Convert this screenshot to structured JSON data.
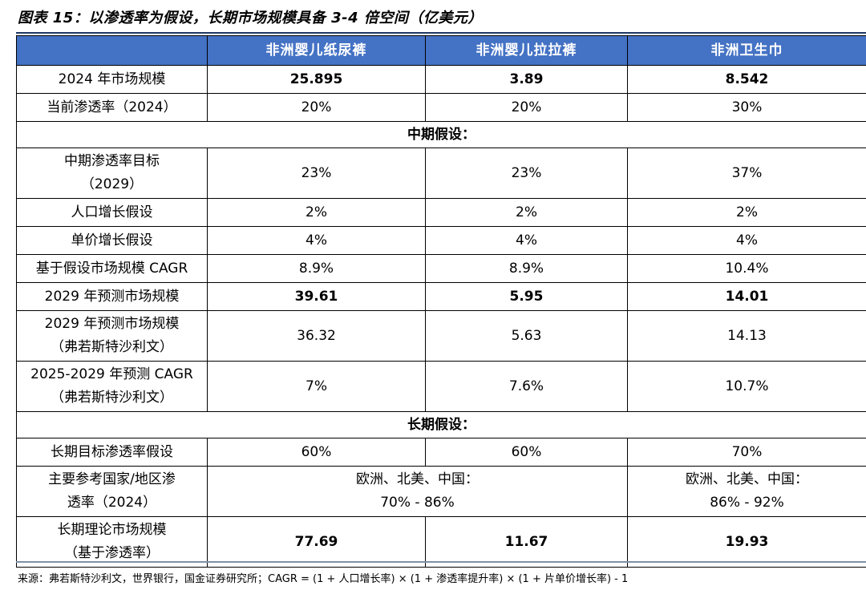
{
  "title": "图表 15：以渗透率为假设，长期市场规模具备 3-4 倍空间（亿美元）",
  "header": {
    "col0": "",
    "col1": "非洲婴儿纸尿裤",
    "col2": "非洲婴儿拉拉裤",
    "col3": "非洲卫生巾"
  },
  "rows": {
    "market_size": {
      "label": "2024 年市场规模",
      "v1": "25.895",
      "v2": "3.89",
      "v3": "8.542"
    },
    "current_pen": {
      "label": "当前渗透率（2024）",
      "v1": "20%",
      "v2": "20%",
      "v3": "30%"
    },
    "mid_section": "中期假设：",
    "mid_target": {
      "label_l1": "中期渗透率目标",
      "label_l2": "（2029）",
      "v1": "23%",
      "v2": "23%",
      "v3": "37%"
    },
    "pop_growth": {
      "label": "人口增长假设",
      "v1": "2%",
      "v2": "2%",
      "v3": "2%"
    },
    "price_growth": {
      "label": "单价增长假设",
      "v1": "4%",
      "v2": "4%",
      "v3": "4%"
    },
    "cagr_assumed": {
      "label": "基于假设市场规模 CAGR",
      "v1": "8.9%",
      "v2": "8.9%",
      "v3": "10.4%"
    },
    "forecast_2029": {
      "label": "2029 年预测市场规模",
      "v1": "39.61",
      "v2": "5.95",
      "v3": "14.01"
    },
    "forecast_2029_fs": {
      "label_l1": "2029 年预测市场规模",
      "label_l2": "（弗若斯特沙利文）",
      "v1": "36.32",
      "v2": "5.63",
      "v3": "14.13"
    },
    "cagr_fs": {
      "label_l1": "2025-2029 年预测 CAGR",
      "label_l2": "（弗若斯特沙利文）",
      "v1": "7%",
      "v2": "7.6%",
      "v3": "10.7%"
    },
    "long_section": "长期假设：",
    "long_target": {
      "label": "长期目标渗透率假设",
      "v1": "60%",
      "v2": "60%",
      "v3": "70%"
    },
    "ref_countries": {
      "label_l1": "主要参考国家/地区渗",
      "label_l2": "透率（2024）",
      "v12_l1": "欧洲、北美、中国：",
      "v12_l2": "70% - 86%",
      "v3_l1": "欧洲、北美、中国：",
      "v3_l2": "86% - 92%"
    },
    "long_market": {
      "label_l1": "长期理论市场规模",
      "label_l2": "（基于渗透率）",
      "v1": "77.69",
      "v2": "11.67",
      "v3": "19.93"
    }
  },
  "source": "来源：弗若斯特沙利文，世界银行，国金证券研究所；CAGR = (1 + 人口增长率) × (1 + 渗透率提升率) × (1 + 片单价增长率) - 1",
  "colors": {
    "header_bg": "#4472c4",
    "header_text": "#ffffff",
    "rule": "#1f3864"
  }
}
